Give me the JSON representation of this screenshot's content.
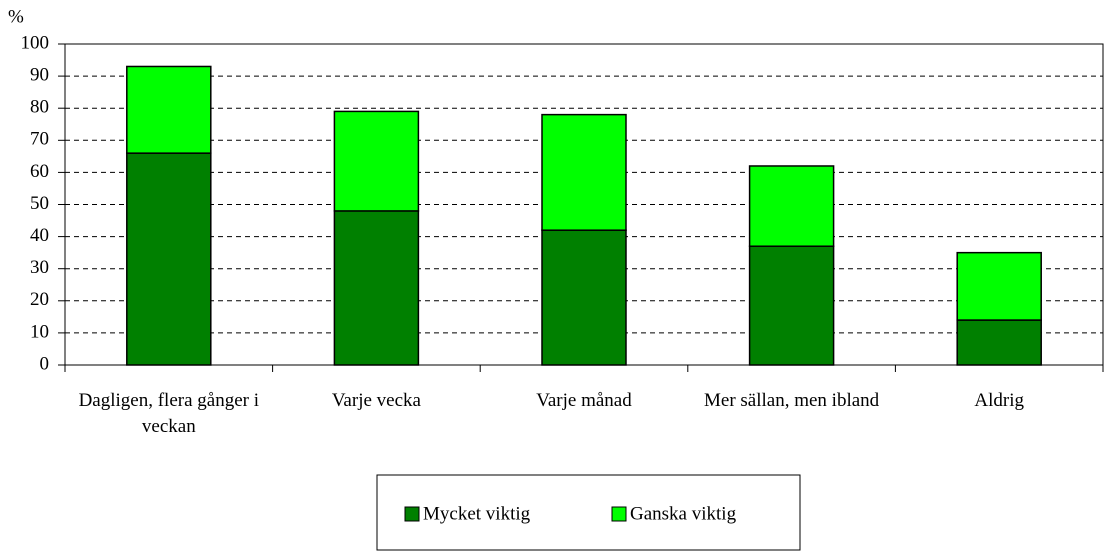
{
  "chart_data": {
    "type": "stacked_bar",
    "y_label": "%",
    "categories": [
      "Dagligen, flera gånger i veckan",
      "Varje vecka",
      "Varje månad",
      "Mer sällan, men ibland",
      "Aldrig"
    ],
    "series": [
      {
        "name": "Mycket viktig",
        "color": "#008000",
        "values": [
          66,
          48,
          42,
          37,
          14
        ]
      },
      {
        "name": "Ganska viktig",
        "color": "#00ff00",
        "values": [
          27,
          31,
          36,
          25,
          21
        ]
      }
    ],
    "ylim": [
      0,
      100
    ],
    "yticks": [
      0,
      10,
      20,
      30,
      40,
      50,
      60,
      70,
      80,
      90,
      100
    ],
    "grid": true
  }
}
